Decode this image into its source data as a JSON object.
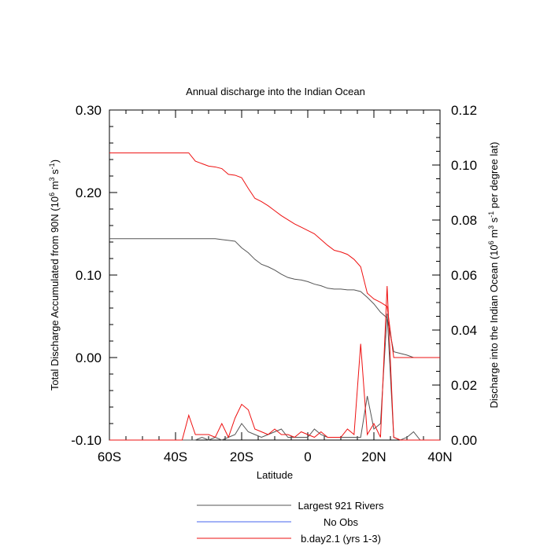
{
  "chart_data": {
    "type": "line",
    "title": "Annual discharge into the Indian Ocean",
    "xlabel": "Latitude",
    "ylabel_parts": [
      "Total Discharge Accumulated from 90N (10",
      "6",
      " m",
      "3",
      " s",
      "-1",
      ")"
    ],
    "y2label_parts": [
      "Discharge into the Indian Ocean (10",
      "6",
      " m",
      "3",
      " s",
      "-1",
      " per degree lat)"
    ],
    "xlim": [
      -60,
      40
    ],
    "xticks": [
      {
        "value": -60,
        "label": "60S"
      },
      {
        "value": -40,
        "label": "40S"
      },
      {
        "value": -20,
        "label": "20S"
      },
      0,
      {
        "value": 20,
        "label": "20N"
      },
      {
        "value": 40,
        "label": "40N"
      }
    ],
    "ylim": [
      -0.1,
      0.3
    ],
    "yticks": [
      {
        "value": -0.1,
        "label": "-0.10"
      },
      {
        "value": 0,
        "label": "0.00"
      },
      {
        "value": 0.1,
        "label": "0.10"
      },
      {
        "value": 0.2,
        "label": "0.20"
      },
      {
        "value": 0.3,
        "label": "0.30"
      }
    ],
    "y2lim": [
      0,
      0.12
    ],
    "y2ticks": [
      {
        "value": 0,
        "label": "0.00"
      },
      {
        "value": 0.02,
        "label": "0.02"
      },
      {
        "value": 0.04,
        "label": "0.04"
      },
      {
        "value": 0.06,
        "label": "0.06"
      },
      {
        "value": 0.08,
        "label": "0.08"
      },
      {
        "value": 0.1,
        "label": "0.10"
      },
      {
        "value": 0.12,
        "label": "0.12"
      }
    ],
    "x": [
      -60,
      -58,
      -56,
      -54,
      -52,
      -50,
      -48,
      -46,
      -44,
      -42,
      -40,
      -38,
      -36,
      -34,
      -32,
      -30,
      -28,
      -26,
      -24,
      -22,
      -20,
      -18,
      -16,
      -14,
      -12,
      -10,
      -8,
      -6,
      -4,
      -2,
      0,
      2,
      4,
      6,
      8,
      10,
      12,
      14,
      16,
      18,
      20,
      22,
      24,
      26,
      28,
      30,
      32,
      34,
      36,
      38,
      40
    ],
    "series": [
      {
        "name": "Largest 921 Rivers",
        "color": "#555555",
        "values": [
          0.144,
          0.144,
          0.144,
          0.144,
          0.144,
          0.144,
          0.144,
          0.144,
          0.144,
          0.144,
          0.144,
          0.144,
          0.144,
          0.144,
          0.144,
          0.144,
          0.144,
          0.143,
          0.142,
          0.141,
          0.133,
          0.127,
          0.119,
          0.113,
          0.11,
          0.106,
          0.101,
          0.097,
          0.095,
          0.094,
          0.092,
          0.089,
          0.087,
          0.084,
          0.083,
          0.083,
          0.082,
          0.082,
          0.08,
          0.073,
          0.065,
          0.055,
          0.048,
          0.007,
          0.005,
          0.003,
          0,
          0,
          0,
          0,
          0
        ],
        "y2_values": [
          0,
          0,
          0,
          0,
          0,
          0,
          0,
          0,
          0,
          0,
          0,
          0,
          0,
          0,
          0.001,
          0,
          0.001,
          0,
          0.001,
          0.002,
          0.006,
          0.003,
          0.002,
          0.001,
          0.002,
          0.003,
          0.004,
          0.001,
          0.001,
          0.001,
          0.001,
          0.004,
          0.002,
          0.001,
          0.001,
          0.001,
          0.001,
          0.001,
          0.001,
          0.016,
          0.004,
          0.006,
          0.046,
          0.001,
          0,
          0.001,
          0.003,
          0,
          0,
          0,
          0
        ]
      },
      {
        "name": "No Obs",
        "color": "#4466ee"
      },
      {
        "name": "b.day2.1 (yrs 1-3)",
        "color": "#ee1111",
        "values": [
          0.248,
          0.248,
          0.248,
          0.248,
          0.248,
          0.248,
          0.248,
          0.248,
          0.248,
          0.248,
          0.248,
          0.248,
          0.248,
          0.238,
          0.235,
          0.232,
          0.231,
          0.229,
          0.222,
          0.221,
          0.218,
          0.205,
          0.193,
          0.189,
          0.184,
          0.178,
          0.172,
          0.167,
          0.162,
          0.158,
          0.154,
          0.15,
          0.143,
          0.136,
          0.13,
          0.128,
          0.125,
          0.119,
          0.11,
          0.078,
          0.071,
          0.067,
          0.062,
          0,
          0,
          0,
          0,
          0,
          0,
          0,
          0
        ],
        "y2_values": [
          0,
          0,
          0,
          0,
          0,
          0,
          0,
          0,
          0,
          0,
          0,
          0,
          0.009,
          0.002,
          0.002,
          0.002,
          0.001,
          0.006,
          0.001,
          0.008,
          0.013,
          0.011,
          0.004,
          0.003,
          0.002,
          0.004,
          0.002,
          0.002,
          0.001,
          0.003,
          0.002,
          0.001,
          0.003,
          0.001,
          0.001,
          0.001,
          0.004,
          0.002,
          0.035,
          0.002,
          0.006,
          0.001,
          0.056,
          0.001,
          0,
          0,
          0,
          0,
          0,
          0,
          0
        ]
      }
    ]
  }
}
